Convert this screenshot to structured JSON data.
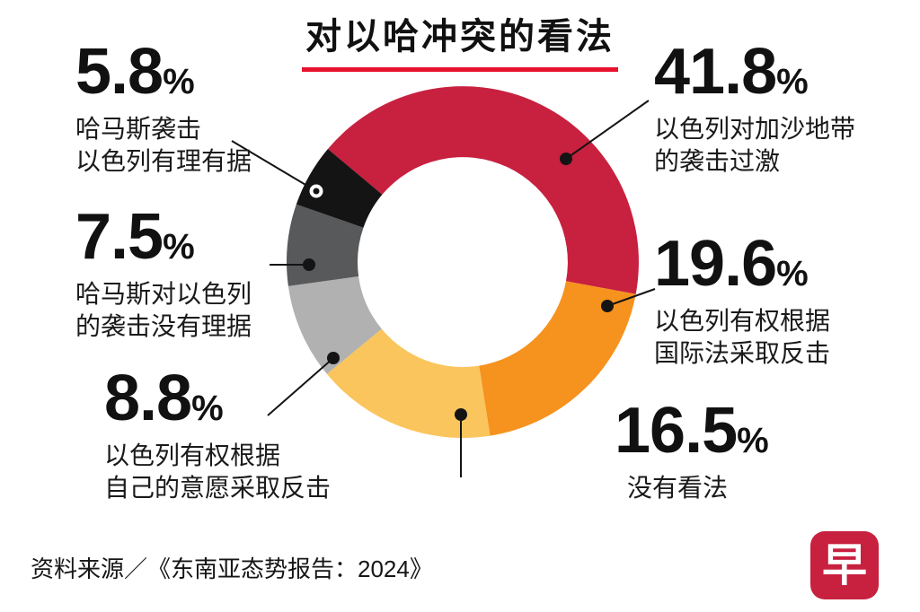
{
  "title": "对以哈冲突的看法",
  "percent_sign": "%",
  "callouts": {
    "c1": {
      "value": "41.8",
      "desc1": "以色列对加沙地带",
      "desc2": "的袭击过激"
    },
    "c2": {
      "value": "19.6",
      "desc1": "以色列有权根据",
      "desc2": "国际法采取反击"
    },
    "c3": {
      "value": "16.5",
      "desc1": "没有看法"
    },
    "c4": {
      "value": "8.8",
      "desc1": "以色列有权根据",
      "desc2": "自己的意愿采取反击"
    },
    "c5": {
      "value": "7.5",
      "desc1": "哈马斯对以色列",
      "desc2": "的袭击没有理据"
    },
    "c6": {
      "value": "5.8",
      "desc1": "哈马斯袭击",
      "desc2": "以色列有理有据"
    }
  },
  "source": "资料来源／《东南亚态势报告：2024》",
  "logo_text": "早",
  "colors": {
    "title_underline": "#E8112D",
    "text": "#161616",
    "logo_background": "#C8203F"
  },
  "chart_data": {
    "type": "pie",
    "donut": true,
    "title": "对以哈冲突的看法",
    "start_angle_deg": -50,
    "slices": [
      {
        "label": "以色列对加沙地带的袭击过激",
        "value": 41.8,
        "color": "#C8203F"
      },
      {
        "label": "以色列有权根据国际法采取反击",
        "value": 19.6,
        "color": "#F6921E"
      },
      {
        "label": "没有看法",
        "value": 16.5,
        "color": "#FBC55D"
      },
      {
        "label": "以色列有权根据自己的意愿采取反击",
        "value": 8.8,
        "color": "#B1B1B1"
      },
      {
        "label": "哈马斯对以色列的袭击没有理据",
        "value": 7.5,
        "color": "#58595B"
      },
      {
        "label": "哈马斯袭击以色列有理有据",
        "value": 5.8,
        "color": "#141414"
      }
    ]
  }
}
